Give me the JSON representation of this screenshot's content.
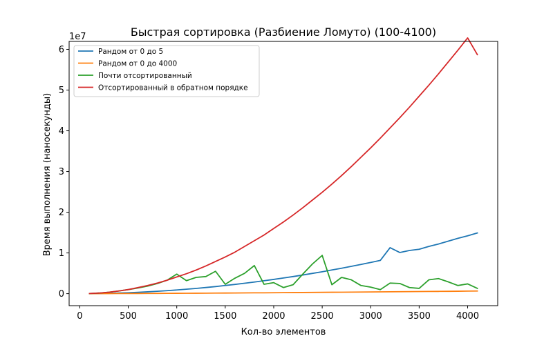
{
  "chart_data": {
    "type": "line",
    "title": "Быстрая сортировка (Разбиение Ломуто) (100-4100)",
    "xlabel": "Кол-во элементов",
    "ylabel": "Время выполнения (наносекунды)",
    "y_offset_label": "1e7",
    "y_scale_factor": 10000000,
    "xlim": [
      -110,
      4310
    ],
    "ylim": [
      -2950000,
      61950000
    ],
    "xticks": [
      0,
      500,
      1000,
      1500,
      2000,
      2500,
      3000,
      3500,
      4000
    ],
    "xtick_labels": [
      "0",
      "500",
      "1000",
      "1500",
      "2000",
      "2500",
      "3000",
      "3500",
      "4000"
    ],
    "yticks": [
      0,
      10000000,
      20000000,
      30000000,
      40000000,
      50000000,
      60000000
    ],
    "ytick_labels": [
      "0",
      "1",
      "2",
      "3",
      "4",
      "5",
      "6"
    ],
    "grid": false,
    "legend_position": "top-left",
    "x": [
      100,
      200,
      300,
      400,
      500,
      600,
      700,
      800,
      900,
      1000,
      1100,
      1200,
      1300,
      1400,
      1500,
      1600,
      1700,
      1800,
      1900,
      2000,
      2100,
      2200,
      2300,
      2400,
      2500,
      2600,
      2700,
      2800,
      2900,
      3000,
      3100,
      3200,
      3300,
      3400,
      3500,
      3600,
      3700,
      3800,
      3900,
      4000,
      4100
    ],
    "series": [
      {
        "name": "Рандом от 0 до 5",
        "color": "#1f77b4",
        "values": [
          10000,
          40000,
          80000,
          150000,
          230000,
          330000,
          450000,
          590000,
          740000,
          900000,
          1090000,
          1290000,
          1510000,
          1740000,
          2000000,
          2270000,
          2550000,
          2850000,
          3170000,
          3500000,
          3850000,
          4200000,
          4580000,
          4980000,
          5380000,
          5810000,
          6250000,
          6710000,
          7180000,
          7670000,
          8180000,
          11300000,
          10100000,
          10600000,
          10900000,
          11600000,
          12200000,
          12900000,
          13600000,
          14200000,
          14900000
        ]
      },
      {
        "name": "Рандом от 0 до 4000",
        "color": "#ff7f0e",
        "values": [
          5000,
          10000,
          20000,
          30000,
          40000,
          50000,
          60000,
          70000,
          80000,
          90000,
          100000,
          110000,
          120000,
          140000,
          150000,
          170000,
          180000,
          200000,
          210000,
          230000,
          250000,
          260000,
          280000,
          300000,
          320000,
          340000,
          360000,
          380000,
          400000,
          420000,
          440000,
          460000,
          480000,
          500000,
          520000,
          540000,
          560000,
          580000,
          600000,
          630000,
          650000
        ]
      },
      {
        "name": "Почти отсортированный",
        "color": "#2ca02c",
        "values": [
          30000,
          150000,
          350000,
          650000,
          1000000,
          1400000,
          1850000,
          2500000,
          3300000,
          4800000,
          3200000,
          4000000,
          4200000,
          5500000,
          2300000,
          3800000,
          5000000,
          6900000,
          2300000,
          2700000,
          1500000,
          2200000,
          4800000,
          7300000,
          9400000,
          2200000,
          4000000,
          3400000,
          2000000,
          1600000,
          1000000,
          2600000,
          2500000,
          1500000,
          1300000,
          3400000,
          3700000,
          2900000,
          2000000,
          2400000,
          1300000
        ]
      },
      {
        "name": "Отсортированный в обратном порядке",
        "color": "#d62728",
        "values": [
          40000,
          150000,
          350000,
          650000,
          1000000,
          1500000,
          2000000,
          2600000,
          3300000,
          4100000,
          4900000,
          5800000,
          6800000,
          7900000,
          9000000,
          10200000,
          11600000,
          13000000,
          14400000,
          16000000,
          17600000,
          19300000,
          21100000,
          23000000,
          24900000,
          26900000,
          29000000,
          31200000,
          33500000,
          35800000,
          38200000,
          40700000,
          43200000,
          45800000,
          48500000,
          51200000,
          54000000,
          56900000,
          59800000,
          62800000,
          58700000
        ]
      }
    ]
  }
}
